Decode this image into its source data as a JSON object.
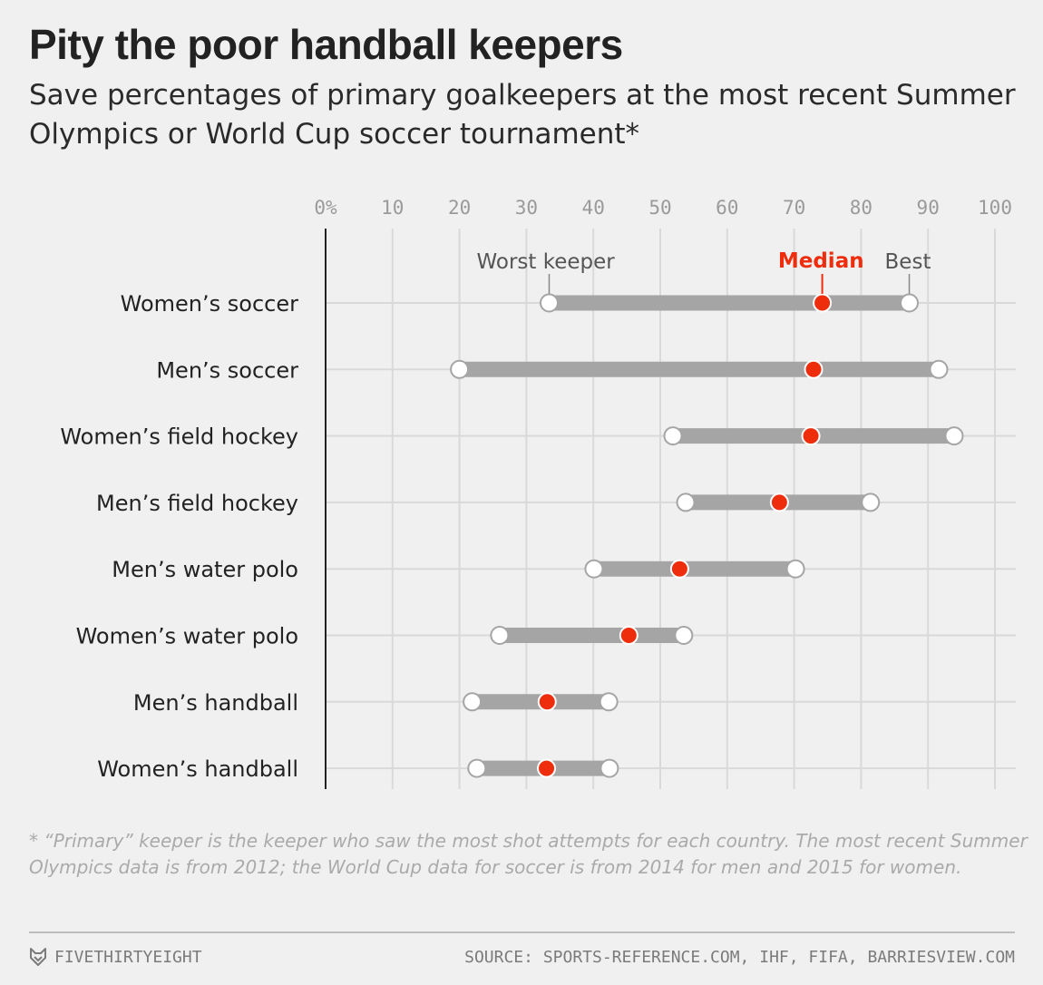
{
  "header": {
    "title": "Pity the poor handball keepers",
    "subtitle": "Save percentages of primary goalkeepers at the most recent Summer Olympics or World Cup soccer tournament*"
  },
  "chart_data": {
    "type": "range-dot",
    "title": "Pity the poor handball keepers",
    "xlim": [
      0,
      100
    ],
    "x_ticks": [
      "0%",
      "10",
      "20",
      "30",
      "40",
      "50",
      "60",
      "70",
      "80",
      "90",
      "100"
    ],
    "grid": true,
    "annotations": {
      "worst": "Worst keeper",
      "median": "Median",
      "best": "Best"
    },
    "series": [
      {
        "name": "Worst keeper",
        "color": "#ffffff"
      },
      {
        "name": "Median",
        "color": "#ee2d0c"
      },
      {
        "name": "Best",
        "color": "#ffffff"
      }
    ],
    "categories": [
      "Women’s soccer",
      "Men’s soccer",
      "Women’s field hockey",
      "Men’s field hockey",
      "Men’s water polo",
      "Women’s water polo",
      "Men’s handball",
      "Women’s handball"
    ],
    "rows": [
      {
        "label": "Women’s soccer",
        "worst": 33.4,
        "median": 74.2,
        "best": 87.2
      },
      {
        "label": "Men’s soccer",
        "worst": 20.0,
        "median": 72.9,
        "best": 91.6
      },
      {
        "label": "Women’s field hockey",
        "worst": 51.9,
        "median": 72.5,
        "best": 93.9
      },
      {
        "label": "Men’s field hockey",
        "worst": 53.8,
        "median": 67.8,
        "best": 81.4
      },
      {
        "label": "Men’s water polo",
        "worst": 40.1,
        "median": 52.9,
        "best": 70.2
      },
      {
        "label": "Women’s water polo",
        "worst": 26.0,
        "median": 45.3,
        "best": 53.5
      },
      {
        "label": "Men’s handball",
        "worst": 21.9,
        "median": 33.1,
        "best": 42.3
      },
      {
        "label": "Women’s handball",
        "worst": 22.6,
        "median": 33.0,
        "best": 42.4
      }
    ]
  },
  "footer": {
    "footnote": "* “Primary” keeper is the keeper who saw the most shot attempts for each country. The most recent Summer Olympics data is from 2012; the World Cup data for soccer is from 2014 for men and 2015 for women.",
    "brand": "FIVETHIRTYEIGHT",
    "source": "SOURCE: SPORTS-REFERENCE.COM, IHF, FIFA, BARRIESVIEW.COM"
  },
  "colors": {
    "background": "#f0f0f0",
    "range_bar": "#a5a5a5",
    "median": "#ee2d0c",
    "grid": "#d9d9d9"
  }
}
